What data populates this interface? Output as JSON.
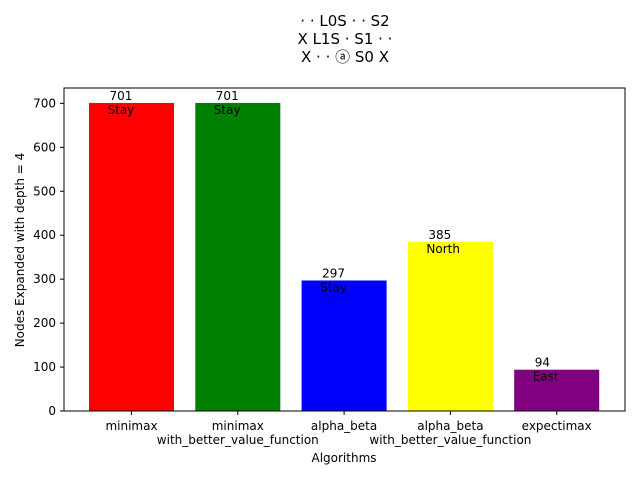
{
  "chart_data": {
    "type": "bar",
    "title_lines": [
      "·  ·   L0S ·   ·   S2",
      "X   L1S ·   S1  ·   ·",
      "X   ·   ·   ⓐ   S0  X"
    ],
    "xlabel": "Algorithms",
    "ylabel": "Nodes Expanded with depth = 4",
    "categories": [
      [
        "minimax"
      ],
      [
        "minimax",
        "with_better_value_function"
      ],
      [
        "alpha_beta"
      ],
      [
        "alpha_beta",
        "with_better_value_function"
      ],
      [
        "expectimax"
      ]
    ],
    "values": [
      701,
      701,
      297,
      385,
      94
    ],
    "actions": [
      "Stay",
      "Stay",
      "Stay",
      "North",
      "East"
    ],
    "colors": [
      "#ff0000",
      "#008000",
      "#0000ff",
      "#ffff00",
      "#800080"
    ],
    "ylim": [
      0,
      735
    ],
    "yticks": [
      0,
      100,
      200,
      300,
      400,
      500,
      600,
      700
    ],
    "grid": false,
    "legend": "none"
  }
}
